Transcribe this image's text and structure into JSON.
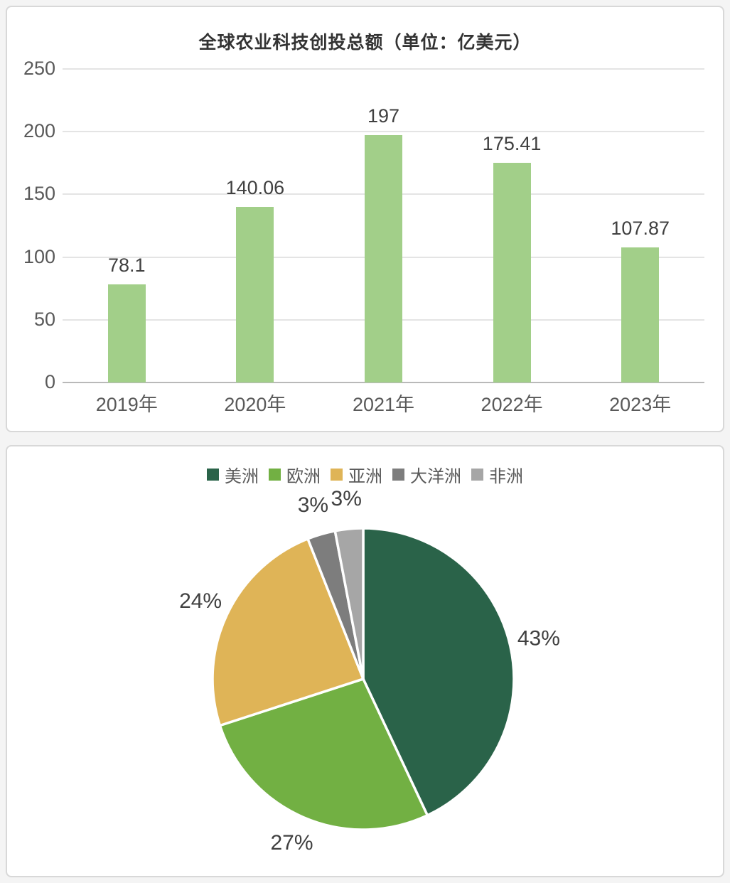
{
  "chart_data": [
    {
      "type": "bar",
      "title": "全球农业科技创投总额（单位：亿美元）",
      "categories": [
        "2019年",
        "2020年",
        "2021年",
        "2022年",
        "2023年"
      ],
      "values": [
        78.1,
        140.06,
        197,
        175.41,
        107.87
      ],
      "data_labels": [
        "78.1",
        "140.06",
        "197",
        "175.41",
        "107.87"
      ],
      "xlabel": "",
      "ylabel": "",
      "ylim": [
        0,
        250
      ],
      "yticks": [
        0,
        50,
        100,
        150,
        200,
        250
      ],
      "grid": true,
      "bar_color": "#a2cf89",
      "gridline_color": "#e4e4e4",
      "axis_line_color": "#b9b9b9"
    },
    {
      "type": "pie",
      "title": "",
      "categories": [
        "美洲",
        "欧洲",
        "亚洲",
        "大洋洲",
        "非洲"
      ],
      "values": [
        43,
        27,
        24,
        3,
        3
      ],
      "slice_labels": [
        "43%",
        "27%",
        "24%",
        "3%",
        "3%"
      ],
      "colors": [
        "#2a6349",
        "#72b043",
        "#dfb457",
        "#7d7d7d",
        "#a6a6a6"
      ],
      "legend_position": "top",
      "start_angle_deg": 0,
      "direction": "clockwise",
      "separator_color": "#ffffff"
    }
  ]
}
